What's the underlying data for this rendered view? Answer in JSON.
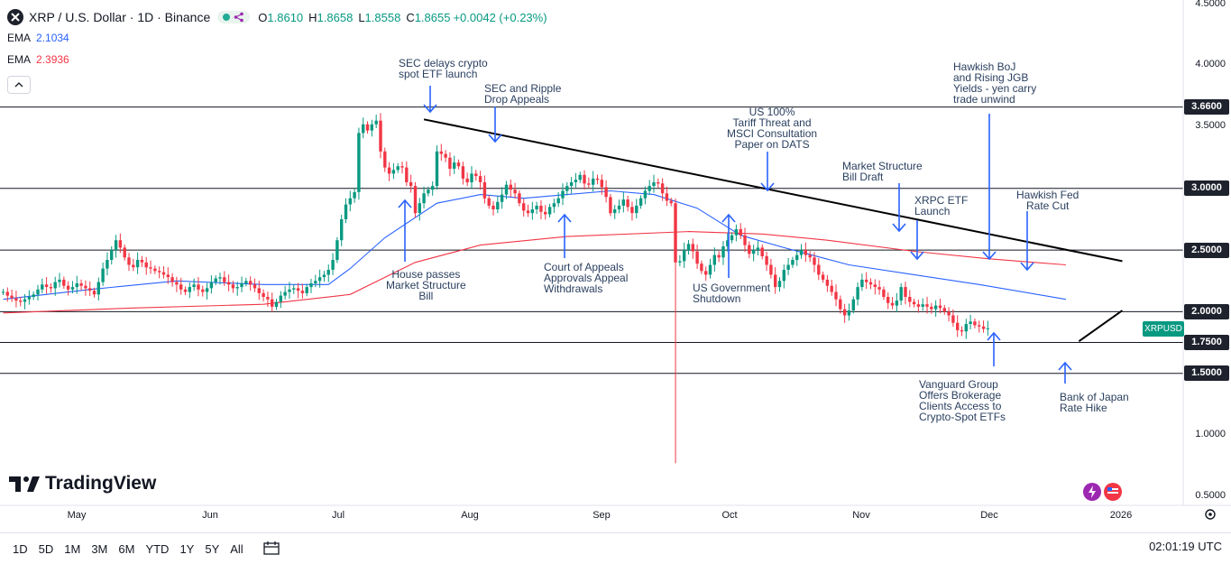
{
  "header": {
    "title": "XRP / U.S. Dollar · 1D · Binance",
    "open_label": "O",
    "open": "1.8610",
    "high_label": "H",
    "high": "1.8658",
    "low_label": "L",
    "low": "1.8558",
    "close_label": "C",
    "close": "1.8655",
    "change": "+0.0042 (+0.23%)"
  },
  "indicators": [
    {
      "name": "EMA",
      "value": "2.1034",
      "color": "#2962ff"
    },
    {
      "name": "EMA",
      "value": "2.3936",
      "color": "#f23645"
    }
  ],
  "price_axis": {
    "ticks": [
      "4.5000",
      "4.0000",
      "3.5000",
      "3.0000",
      "2.5000",
      "2.0000",
      "1.5000",
      "1.0000",
      "0.5000"
    ],
    "level_labels": [
      "3.6600",
      "3.0000",
      "2.5000",
      "2.0000",
      "1.7500",
      "1.5000"
    ],
    "symbol_label": "XRPUSD"
  },
  "time_axis": [
    "May",
    "Jun",
    "Jul",
    "Aug",
    "Sep",
    "Oct",
    "Nov",
    "Dec",
    "2026"
  ],
  "toolbar": {
    "timeframes": [
      "1D",
      "5D",
      "1M",
      "3M",
      "6M",
      "YTD",
      "1Y",
      "5Y",
      "All"
    ],
    "time": "02:01:19 UTC"
  },
  "brand": "TradingView",
  "colors": {
    "up": "#089981",
    "down": "#f23645",
    "ema_fast": "#2962ff",
    "ema_slow": "#f23645",
    "arrow": "#2962ff"
  },
  "annotations": [
    {
      "text": "SEC delays crypto\nspot ETF launch"
    },
    {
      "text": "SEC and Ripple\nDrop Appeals"
    },
    {
      "text": "US 100%\nTariff Threat and\nMSCI Consultation\nPaper on DATS"
    },
    {
      "text": "Market Structure\nBill Draft"
    },
    {
      "text": "XRPC ETF\nLaunch"
    },
    {
      "text": "Hawkish BoJ\nand Rising JGB\nYields - yen carry\ntrade unwind"
    },
    {
      "text": "Hawkish Fed\nRate Cut"
    },
    {
      "text": "House passes\nMarket Structure\nBill"
    },
    {
      "text": "Court of Appeals\nApprovals Appeal\nWithdrawals"
    },
    {
      "text": "US Government\nShutdown"
    },
    {
      "text": "Vanguard Group\nOffers Brokerage\nClients Access to\nCrypto-Spot ETFs"
    },
    {
      "text": "Bank of Japan\nRate Hike"
    }
  ],
  "chart_data": {
    "type": "candlestick",
    "symbol": "XRPUSD",
    "interval": "1D",
    "ylim": [
      0.5,
      4.5
    ],
    "horizontal_levels": [
      3.66,
      3.0,
      2.5,
      2.0,
      1.75,
      1.5
    ],
    "trendlines": [
      {
        "from": [
          "2025-07-21",
          3.56
        ],
        "to": [
          "2025-12-29",
          2.41
        ]
      },
      {
        "from": [
          "2025-12-19",
          1.76
        ],
        "to": [
          "2025-12-29",
          2.01
        ]
      }
    ],
    "close_series": {
      "start": "2025-04-15",
      "values": [
        2.16,
        2.13,
        2.11,
        2.09,
        2.08,
        2.1,
        2.12,
        2.14,
        2.18,
        2.22,
        2.2,
        2.19,
        2.24,
        2.26,
        2.21,
        2.18,
        2.2,
        2.23,
        2.21,
        2.19,
        2.17,
        2.14,
        2.24,
        2.35,
        2.42,
        2.5,
        2.58,
        2.52,
        2.44,
        2.38,
        2.36,
        2.42,
        2.4,
        2.36,
        2.35,
        2.33,
        2.32,
        2.3,
        2.28,
        2.24,
        2.22,
        2.18,
        2.16,
        2.2,
        2.22,
        2.18,
        2.16,
        2.19,
        2.24,
        2.27,
        2.28,
        2.24,
        2.22,
        2.19,
        2.2,
        2.23,
        2.25,
        2.22,
        2.19,
        2.15,
        2.12,
        2.1,
        2.04,
        2.08,
        2.13,
        2.16,
        2.18,
        2.19,
        2.17,
        2.15,
        2.2,
        2.23,
        2.25,
        2.28,
        2.3,
        2.34,
        2.42,
        2.58,
        2.75,
        2.87,
        2.92,
        2.97,
        3.45,
        3.52,
        3.47,
        3.52,
        3.55,
        3.3,
        3.17,
        3.12,
        3.15,
        3.18,
        3.17,
        3.05,
        3.02,
        2.8,
        2.88,
        2.96,
        2.99,
        3.02,
        3.3,
        3.28,
        3.25,
        3.16,
        3.21,
        3.18,
        3.08,
        3.05,
        3.12,
        3.1,
        3.05,
        2.92,
        2.86,
        2.83,
        2.89,
        2.95,
        3.03,
        2.99,
        2.96,
        2.88,
        2.82,
        2.8,
        2.83,
        2.86,
        2.81,
        2.79,
        2.85,
        2.88,
        2.92,
        2.98,
        3.02,
        3.05,
        3.07,
        3.11,
        3.04,
        3.03,
        3.08,
        3.07,
        3.01,
        2.93,
        2.8,
        2.83,
        2.86,
        2.91,
        2.85,
        2.8,
        2.86,
        2.92,
        2.98,
        3.02,
        3.05,
        3.04,
        2.96,
        2.9,
        2.88,
        2.4,
        2.41,
        2.5,
        2.55,
        2.49,
        2.39,
        2.33,
        2.3,
        2.38,
        2.46,
        2.44,
        2.53,
        2.58,
        2.62,
        2.67,
        2.62,
        2.54,
        2.47,
        2.5,
        2.52,
        2.45,
        2.38,
        2.3,
        2.2,
        2.25,
        2.34,
        2.38,
        2.42,
        2.46,
        2.5,
        2.46,
        2.44,
        2.38,
        2.3,
        2.26,
        2.21,
        2.16,
        2.1,
        2.02,
        1.97,
        2.01,
        2.1,
        2.2,
        2.26,
        2.24,
        2.22,
        2.2,
        2.18,
        2.12,
        2.07,
        2.05,
        2.09,
        2.2,
        2.12,
        2.08,
        2.06,
        2.04,
        2.06,
        2.04,
        2.02,
        2.05,
        2.03,
        2.0,
        1.97,
        1.91,
        1.85,
        1.84,
        1.9,
        1.92,
        1.89,
        1.88,
        1.86,
        1.8655
      ]
    },
    "ema_fast": [
      [
        0,
        2.1
      ],
      [
        20,
        2.18
      ],
      [
        40,
        2.25
      ],
      [
        60,
        2.22
      ],
      [
        75,
        2.22
      ],
      [
        80,
        2.35
      ],
      [
        88,
        2.6
      ],
      [
        100,
        2.88
      ],
      [
        110,
        2.95
      ],
      [
        120,
        2.92
      ],
      [
        140,
        2.98
      ],
      [
        150,
        2.95
      ],
      [
        160,
        2.84
      ],
      [
        170,
        2.62
      ],
      [
        180,
        2.52
      ],
      [
        195,
        2.38
      ],
      [
        210,
        2.3
      ],
      [
        225,
        2.22
      ],
      [
        245,
        2.1
      ]
    ],
    "ema_slow": [
      [
        0,
        1.99
      ],
      [
        30,
        2.03
      ],
      [
        60,
        2.06
      ],
      [
        80,
        2.14
      ],
      [
        95,
        2.4
      ],
      [
        110,
        2.54
      ],
      [
        130,
        2.61
      ],
      [
        158,
        2.65
      ],
      [
        175,
        2.63
      ],
      [
        190,
        2.58
      ],
      [
        210,
        2.49
      ],
      [
        227,
        2.43
      ],
      [
        245,
        2.38
      ]
    ]
  }
}
